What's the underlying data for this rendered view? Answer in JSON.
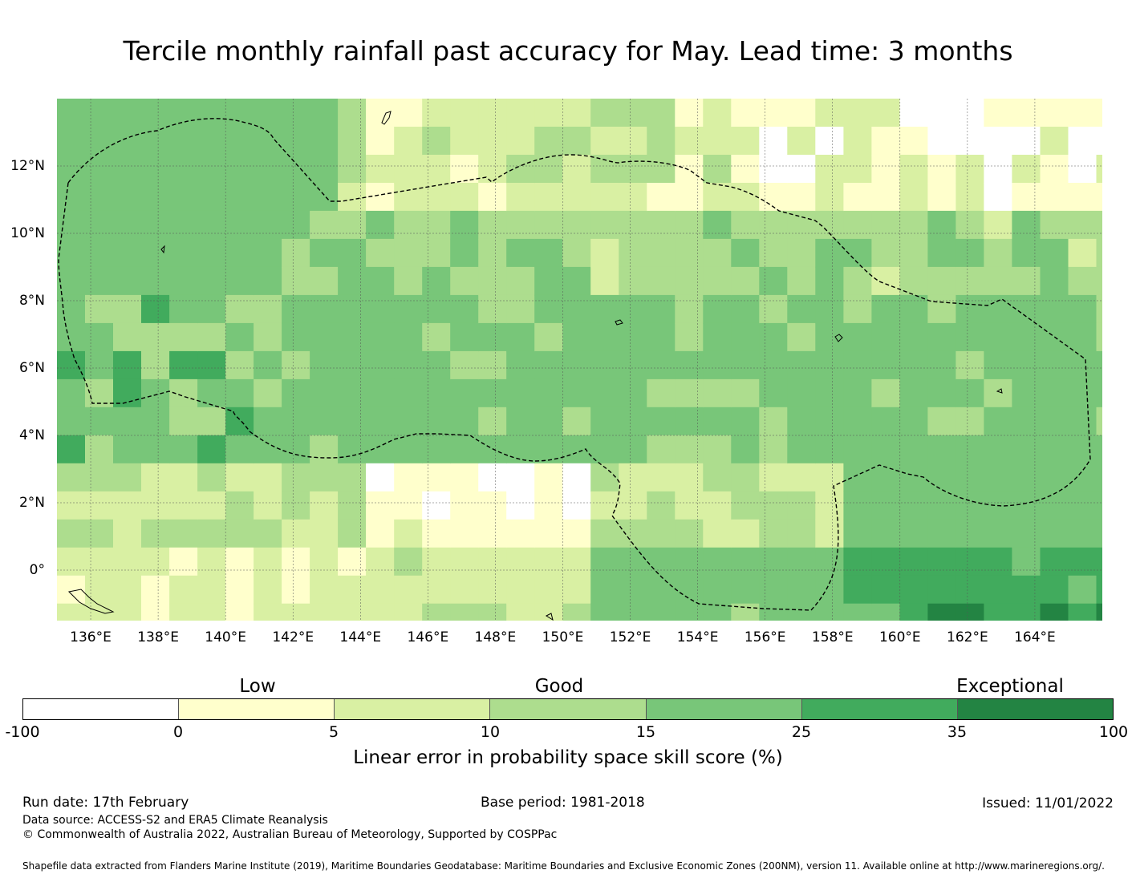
{
  "title": "Tercile monthly rainfall past accuracy for May. Lead time: 3 months",
  "map": {
    "lon_labels": [
      "136°E",
      "138°E",
      "140°E",
      "142°E",
      "144°E",
      "146°E",
      "148°E",
      "150°E",
      "152°E",
      "154°E",
      "156°E",
      "158°E",
      "160°E",
      "162°E",
      "164°E"
    ],
    "lat_labels": [
      "12°N",
      "10°N",
      "8°N",
      "6°N",
      "4°N",
      "2°N",
      "0°"
    ],
    "lon_range": [
      135.0,
      166.0
    ],
    "lat_range": [
      -1.5,
      14.0
    ],
    "boundary_style": "dashed",
    "colors": {
      "no_skill": "#ffffff",
      "c0_5": "#ffffcc",
      "c5_10": "#d9f0a3",
      "c10_15": "#addd8e",
      "c15_25": "#78c679",
      "c25_35": "#41ab5d",
      "c35_100": "#238443",
      "grid": "#555555",
      "boundary": "#000000"
    }
  },
  "colorbar": {
    "categories": [
      "Low",
      "Good",
      "Exceptional"
    ],
    "ticks": [
      "-100",
      "0",
      "5",
      "10",
      "15",
      "25",
      "35",
      "100"
    ],
    "segment_colors": [
      "#ffffff",
      "#ffffcc",
      "#d9f0a3",
      "#addd8e",
      "#78c679",
      "#41ab5d",
      "#238443"
    ],
    "label": "Linear error in probability space skill score (%)"
  },
  "footer": {
    "run_date": "Run date: 17th February",
    "base_period": "Base period: 1981-2018",
    "issued": "Issued: 11/01/2022",
    "data_source": "Data source: ACCESS-S2 and ERA5 Climate Reanalysis",
    "copyright": "© Commonwealth of Australia 2022, Australian Bureau of Meteorology, Supported by COSPPac",
    "shapefile_note": "Shapefile data extracted from Flanders Marine Institute (2019), Maritime Boundaries Geodatabase: Maritime Boundaries and Exclusive Economic Zones (200NM), version 11. Available online at http://www.marineregions.org/."
  }
}
